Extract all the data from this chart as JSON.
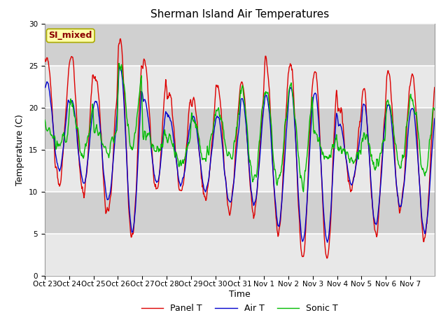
{
  "title": "Sherman Island Air Temperatures",
  "xlabel": "Time",
  "ylabel": "Temperature (C)",
  "ylim": [
    0,
    30
  ],
  "yticks": [
    0,
    5,
    10,
    15,
    20,
    25,
    30
  ],
  "xtick_labels": [
    "Oct 23",
    "Oct 24",
    "Oct 25",
    "Oct 26",
    "Oct 27",
    "Oct 28",
    "Oct 29",
    "Oct 30",
    "Oct 31",
    "Nov 1",
    "Nov 2",
    "Nov 3",
    "Nov 4",
    "Nov 5",
    "Nov 6",
    "Nov 7"
  ],
  "legend_entries": [
    "Panel T",
    "Air T",
    "Sonic T"
  ],
  "line_colors": [
    "#dd0000",
    "#0000cc",
    "#00bb00"
  ],
  "plot_bg": "#d8d8d8",
  "fig_bg": "#ffffff",
  "annotation_text": "SI_mixed",
  "annotation_color": "#8b0000",
  "annotation_bg": "#ffffaa",
  "annotation_edge": "#aaaa00",
  "grid_color": "#ffffff",
  "linewidth": 1.0,
  "title_fontsize": 11,
  "tick_fontsize": 7.5,
  "ylabel_fontsize": 9,
  "xlabel_fontsize": 9,
  "legend_fontsize": 9,
  "n_days": 16,
  "panel_peaks": [
    26,
    26,
    24,
    28,
    25.5,
    22,
    21,
    22.5,
    23,
    25.5,
    25.5,
    25,
    20,
    22,
    24.5,
    24
  ],
  "panel_lows": [
    10.5,
    9.5,
    7,
    4.5,
    10,
    10,
    9,
    7.5,
    7.5,
    5,
    2,
    2,
    10,
    5,
    7.5,
    4
  ],
  "air_peaks": [
    23,
    21,
    21,
    25,
    21,
    19,
    19,
    19,
    21,
    21.5,
    22.5,
    22,
    18,
    20.5,
    20.5,
    20
  ],
  "air_lows": [
    12.5,
    11,
    9,
    5,
    11,
    11,
    10,
    8.5,
    8.5,
    6,
    4,
    4,
    11,
    6,
    8,
    5
  ],
  "sonic_peaks": [
    17.5,
    20.5,
    17.5,
    25.5,
    17,
    16.5,
    19,
    20,
    22,
    22,
    22.5,
    17,
    15,
    17,
    21,
    21
  ],
  "sonic_lows": [
    15.5,
    14.5,
    15,
    15,
    15,
    13.5,
    14,
    14,
    11,
    11,
    11,
    14,
    14,
    13,
    13,
    12
  ]
}
